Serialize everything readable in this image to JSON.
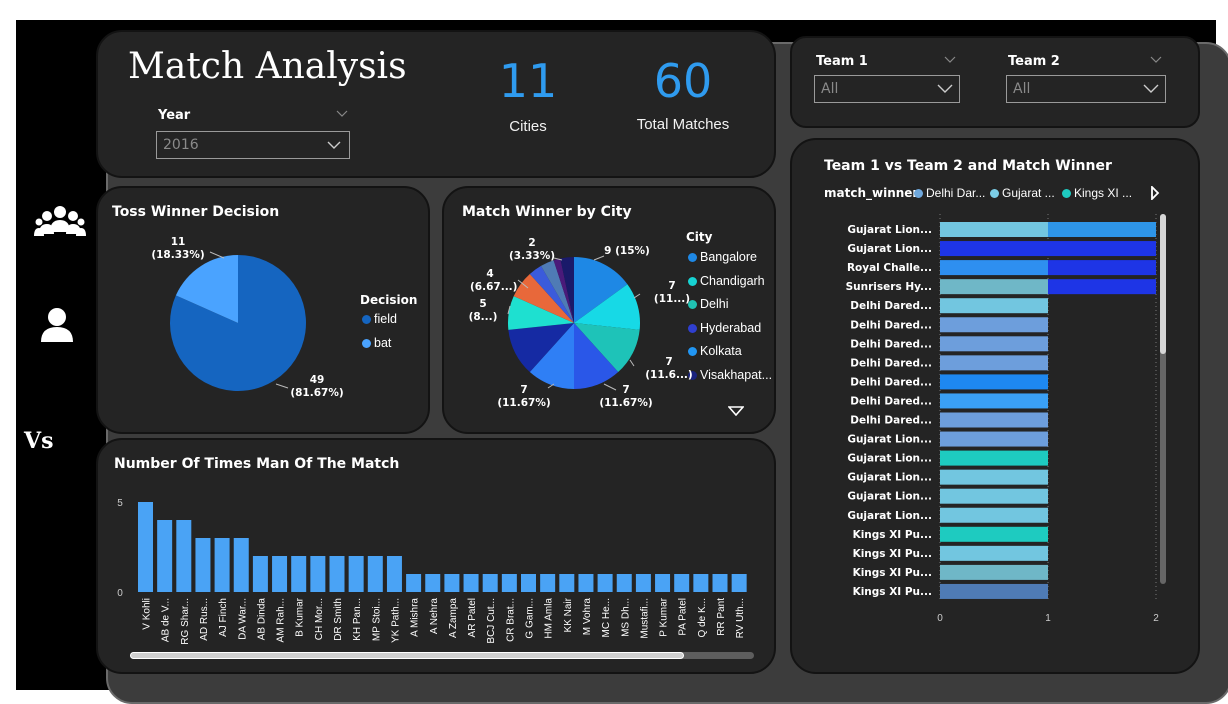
{
  "header": {
    "title": "Match Analysis"
  },
  "year_slicer": {
    "label": "Year",
    "value": "2016"
  },
  "kpis": [
    {
      "value": "11",
      "label": "Cities"
    },
    {
      "value": "60",
      "label": "Total Matches"
    }
  ],
  "team_slicers": [
    {
      "label": "Team 1",
      "value": "All"
    },
    {
      "label": "Team 2",
      "value": "All"
    }
  ],
  "nav": [
    {
      "icon": "players-group-icon"
    },
    {
      "icon": "person-icon"
    },
    {
      "icon": "versus-icon",
      "text": "Vs"
    }
  ],
  "colors": {
    "accent": "#2f9bef",
    "card": "#242424",
    "panel": "#3c3c3c"
  },
  "chart_data": [
    {
      "id": "toss",
      "type": "pie",
      "title": "Toss Winner Decision",
      "legend_title": "Decision",
      "slices": [
        {
          "name": "field",
          "value": 49,
          "label_value": "49",
          "label_pct": "(81.67%)",
          "color": "#1565c0"
        },
        {
          "name": "bat",
          "value": 11,
          "label_value": "11",
          "label_pct": "(18.33%)",
          "color": "#4aa3ff"
        }
      ]
    },
    {
      "id": "city",
      "type": "pie",
      "title": "Match Winner by City",
      "legend_title": "City",
      "legend": [
        {
          "name": "Bangalore",
          "color": "#1e88e5"
        },
        {
          "name": "Chandigarh",
          "color": "#17d3d3"
        },
        {
          "name": "Delhi",
          "color": "#20c2b3"
        },
        {
          "name": "Hyderabad",
          "color": "#2f3fd0"
        },
        {
          "name": "Kolkata",
          "color": "#2196f3"
        },
        {
          "name": "Visakhapat...",
          "color": "#1a237e"
        }
      ],
      "slices": [
        {
          "value": 9,
          "color": "#1e88e5",
          "label_value": "9",
          "label_pct": "(15%)"
        },
        {
          "value": 7,
          "color": "#17d9e6",
          "label_value": "7",
          "label_pct": "(11...)"
        },
        {
          "value": 7,
          "color": "#1ec3b8",
          "label_value": "7",
          "label_pct": "(11.6...)"
        },
        {
          "value": 7,
          "color": "#2a57e8",
          "label_value": "7",
          "label_pct": "(11.67%)"
        },
        {
          "value": 7,
          "color": "#2f7ff5",
          "label_value": "7",
          "label_pct": "(11.67%)"
        },
        {
          "value": 7,
          "color": "#152aa3",
          "label_value": "",
          "label_pct": ""
        },
        {
          "value": 5,
          "color": "#1ee0d0",
          "label_value": "5",
          "label_pct": "(8...)"
        },
        {
          "value": 4,
          "color": "#e8683a",
          "label_value": "4",
          "label_pct": "(6.67...)"
        },
        {
          "value": 2,
          "color": "#3b5bdb",
          "label_value": "2",
          "label_pct": "(3.33%)"
        },
        {
          "value": 2,
          "color": "#4f7bb5",
          "label_value": "",
          "label_pct": ""
        },
        {
          "value": 1,
          "color": "#4a1a7a",
          "label_value": "",
          "label_pct": ""
        },
        {
          "value": 2,
          "color": "#1a1a6a",
          "label_value": "",
          "label_pct": ""
        }
      ]
    },
    {
      "id": "mom",
      "type": "bar",
      "title": "Number Of Times Man Of The Match",
      "yticks": [
        0,
        5
      ],
      "ylim": [
        0,
        5
      ],
      "categories": [
        "V Kohli",
        "AB de V...",
        "RG Shar...",
        "AD Rus...",
        "AJ Finch",
        "DA War...",
        "AB Dinda",
        "AM Rah...",
        "B Kumar",
        "CH Mor...",
        "DR Smith",
        "KH Pan...",
        "MP Stoi...",
        "YK Path...",
        "A Mishra",
        "A Nehra",
        "A Zampa",
        "AR Patel",
        "BCJ Cut...",
        "CR Brat...",
        "G Gam...",
        "HM Amla",
        "KK Nair",
        "M Vohra",
        "MC He...",
        "MS Dh...",
        "Mustafi...",
        "P Kumar",
        "PA Patel",
        "Q de K...",
        "RR Pant",
        "RV Uth..."
      ],
      "values": [
        5,
        4,
        4,
        3,
        3,
        3,
        2,
        2,
        2,
        2,
        2,
        2,
        2,
        2,
        1,
        1,
        1,
        1,
        1,
        1,
        1,
        1,
        1,
        1,
        1,
        1,
        1,
        1,
        1,
        1,
        1,
        1
      ],
      "color": "#4aa3f5"
    },
    {
      "id": "teams",
      "type": "bar",
      "orientation": "horizontal",
      "title": "Team 1 vs Team 2 and Match Winner",
      "legend_title": "match_winner",
      "legend": [
        {
          "name": "Delhi Dar...",
          "color": "#6fa8dc"
        },
        {
          "name": "Gujarat ...",
          "color": "#7ccde6"
        },
        {
          "name": "Kings XI ...",
          "color": "#1ecbc0"
        }
      ],
      "xticks": [
        "0",
        "1",
        "2"
      ],
      "xlim": [
        0,
        2
      ],
      "rows": [
        {
          "label": "Gujarat Lion...",
          "segments": [
            {
              "value": 1,
              "color": "#72c6e0"
            },
            {
              "value": 1,
              "color": "#2e95e8"
            }
          ]
        },
        {
          "label": "Gujarat Lion...",
          "segments": [
            {
              "value": 2,
              "color": "#1e35e6"
            }
          ]
        },
        {
          "label": "Royal Challe...",
          "segments": [
            {
              "value": 1,
              "color": "#2e8ff0"
            },
            {
              "value": 1,
              "color": "#1e35e6"
            }
          ]
        },
        {
          "label": "Sunrisers Hy...",
          "segments": [
            {
              "value": 1,
              "color": "#6fb7c7"
            },
            {
              "value": 1,
              "color": "#1e35e6"
            }
          ]
        },
        {
          "label": "Delhi Dared...",
          "segments": [
            {
              "value": 1,
              "color": "#72c6e0"
            }
          ]
        },
        {
          "label": "Delhi Dared...",
          "segments": [
            {
              "value": 1,
              "color": "#6d9edc"
            }
          ]
        },
        {
          "label": "Delhi Dared...",
          "segments": [
            {
              "value": 1,
              "color": "#6d9edc"
            }
          ]
        },
        {
          "label": "Delhi Dared...",
          "segments": [
            {
              "value": 1,
              "color": "#6d9edc"
            }
          ]
        },
        {
          "label": "Delhi Dared...",
          "segments": [
            {
              "value": 1,
              "color": "#1e88f0"
            }
          ]
        },
        {
          "label": "Delhi Dared...",
          "segments": [
            {
              "value": 1,
              "color": "#3aa0f5"
            }
          ]
        },
        {
          "label": "Delhi Dared...",
          "segments": [
            {
              "value": 1,
              "color": "#6d9edc"
            }
          ]
        },
        {
          "label": "Gujarat Lion...",
          "segments": [
            {
              "value": 1,
              "color": "#6d9edc"
            }
          ]
        },
        {
          "label": "Gujarat Lion...",
          "segments": [
            {
              "value": 1,
              "color": "#1ecbc0"
            }
          ]
        },
        {
          "label": "Gujarat Lion...",
          "segments": [
            {
              "value": 1,
              "color": "#72c6e0"
            }
          ]
        },
        {
          "label": "Gujarat Lion...",
          "segments": [
            {
              "value": 1,
              "color": "#72c6e0"
            }
          ]
        },
        {
          "label": "Gujarat Lion...",
          "segments": [
            {
              "value": 1,
              "color": "#72c6e0"
            }
          ]
        },
        {
          "label": "Kings XI Pu...",
          "segments": [
            {
              "value": 1,
              "color": "#1ecbc0"
            }
          ]
        },
        {
          "label": "Kings XI Pu...",
          "segments": [
            {
              "value": 1,
              "color": "#72c6e0"
            }
          ]
        },
        {
          "label": "Kings XI Pu...",
          "segments": [
            {
              "value": 1,
              "color": "#6fb7c7"
            }
          ]
        },
        {
          "label": "Kings XI Pu...",
          "segments": [
            {
              "value": 1,
              "color": "#4f7bb5"
            }
          ]
        }
      ]
    }
  ]
}
